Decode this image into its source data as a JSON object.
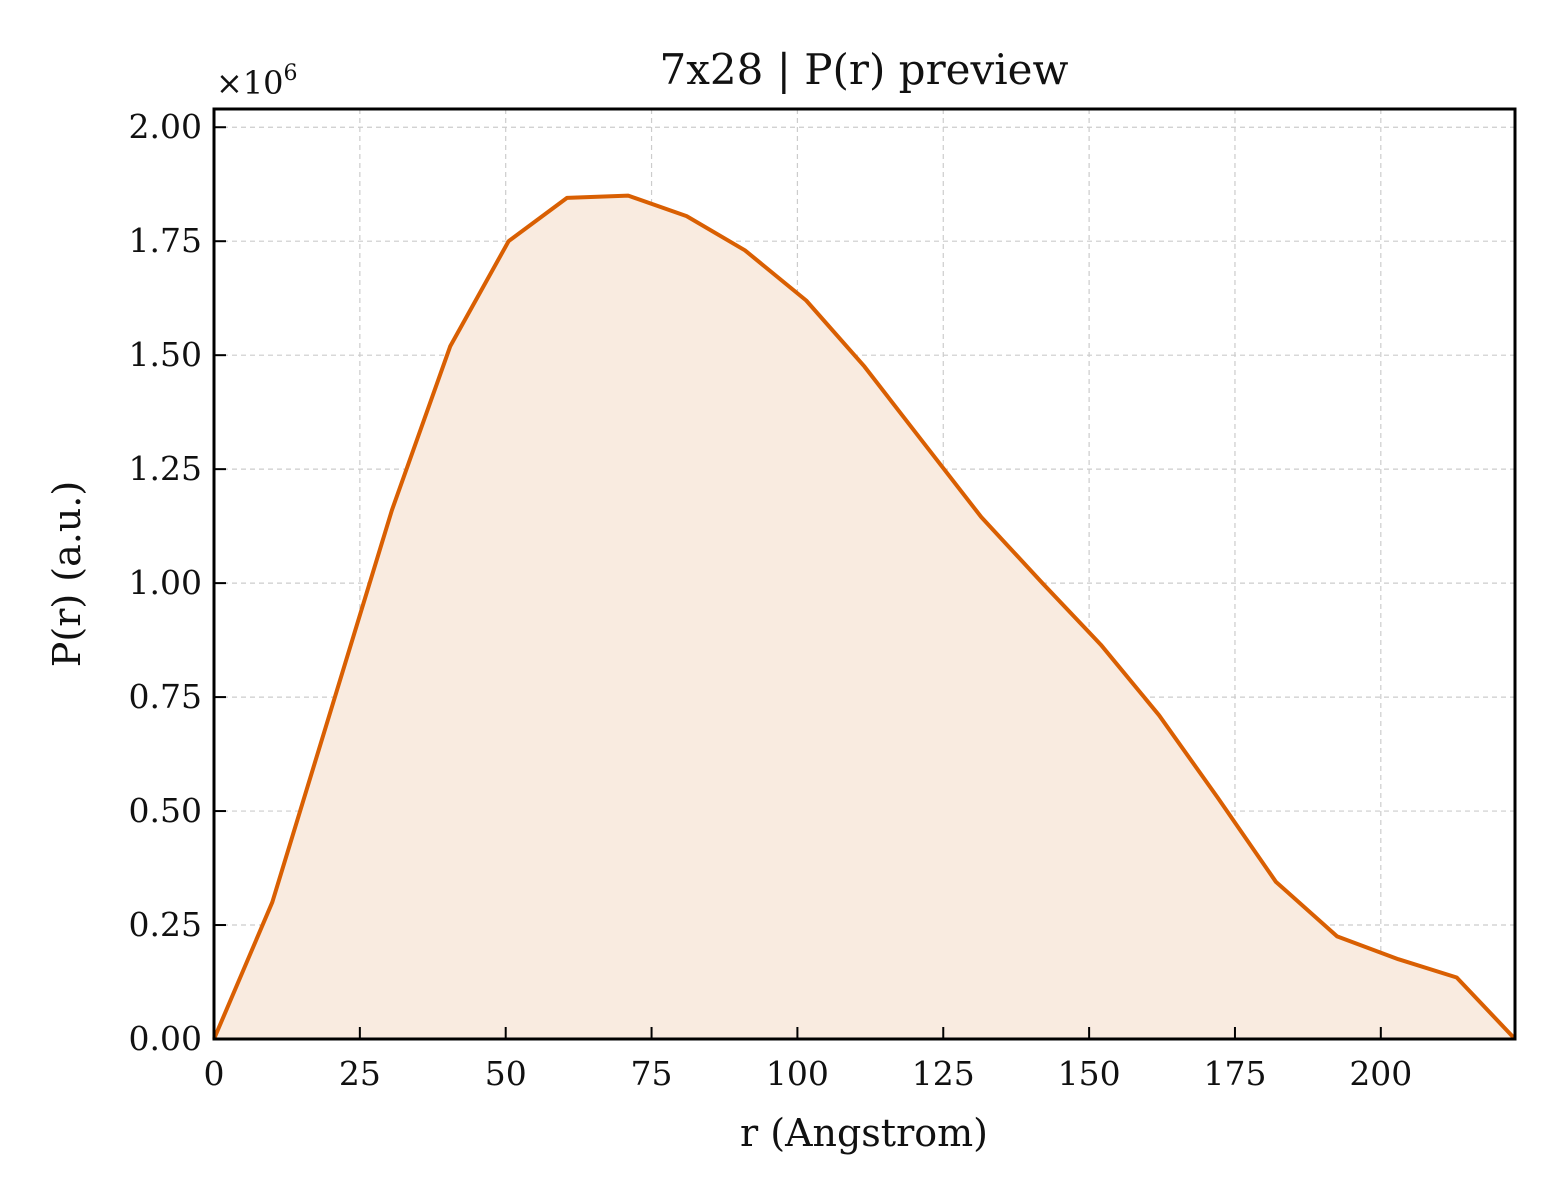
{
  "chart_data": {
    "type": "area",
    "title": "7x28 | P(r) preview",
    "xlabel": "r (Angstrom)",
    "ylabel": "P(r) (a.u.)",
    "y_multiplier_label": "×10",
    "y_multiplier_exponent": "6",
    "xlim": [
      0,
      223
    ],
    "ylim": [
      0,
      2.04
    ],
    "grid": true,
    "x_ticks": [
      0,
      25,
      50,
      75,
      100,
      125,
      150,
      175,
      200
    ],
    "x_tick_labels": [
      "0",
      "25",
      "50",
      "75",
      "100",
      "125",
      "150",
      "175",
      "200"
    ],
    "y_ticks": [
      0,
      0.25,
      0.5,
      0.75,
      1.0,
      1.25,
      1.5,
      1.75,
      2.0
    ],
    "y_tick_labels": [
      "0.00",
      "0.25",
      "0.50",
      "0.75",
      "1.00",
      "1.25",
      "1.50",
      "1.75",
      "2.00"
    ],
    "colors": {
      "line": "#d95f02",
      "fill": "#f9ebe0"
    },
    "series": [
      {
        "x": [
          0,
          10,
          20,
          30.5,
          40.5,
          50.5,
          60.5,
          71,
          81,
          91,
          101.5,
          111.5,
          121.5,
          131.5,
          142,
          152,
          162,
          172,
          182,
          192.5,
          203,
          213,
          223
        ],
        "y": [
          0,
          0.3,
          0.72,
          1.16,
          1.52,
          1.75,
          1.845,
          1.85,
          1.805,
          1.73,
          1.62,
          1.475,
          1.31,
          1.145,
          1.0,
          0.865,
          0.71,
          0.53,
          0.345,
          0.225,
          0.175,
          0.135,
          0.0
        ]
      }
    ]
  }
}
